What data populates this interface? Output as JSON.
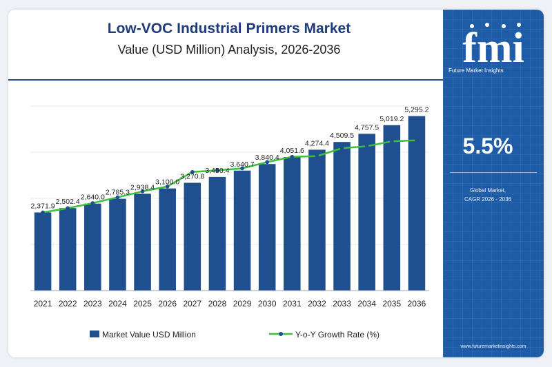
{
  "header": {
    "title": "Low-VOC Industrial Primers Market",
    "subtitle": "Value (USD Million) Analysis, 2026-2036"
  },
  "side_panel": {
    "logo_text": "fmi",
    "logo_tagline": "Future Market Insights",
    "cagr_value": "5.5%",
    "cagr_label_line1": "Global Market,",
    "cagr_label_line2": "CAGR 2026 - 2036",
    "website": "www.futuremarketinsights.com"
  },
  "colors": {
    "bar": "#1f4f8f",
    "line": "#3dbf3d",
    "marker": "#1f4f8f",
    "panel": "#1f5ca8",
    "title": "#1f3b7a",
    "bottom_bar": [
      "#4caf50",
      "#e8731f",
      "#7b3fa0"
    ]
  },
  "chart_data": {
    "type": "bar",
    "title": "Low-VOC Industrial Primers Market",
    "subtitle": "Value (USD Million) Analysis, 2026-2036",
    "categories": [
      "2021",
      "2022",
      "2023",
      "2024",
      "2025",
      "2026",
      "2027",
      "2028",
      "2029",
      "2030",
      "2031",
      "2032",
      "2033",
      "2034",
      "2035",
      "2036"
    ],
    "value_labels": [
      "2,371.9",
      "2,502.4",
      "2,640.0",
      "2,785.3",
      "2,938.4",
      "3,100.0",
      "3,270.8",
      "3,450.4",
      "3,640.7",
      "3,840.4",
      "4,051.6",
      "4,274.4",
      "4,509.5",
      "4,757.5",
      "5,019.2",
      "5,295.2"
    ],
    "series": [
      {
        "name": "Market Value USD Million",
        "type": "bar",
        "values": [
          2371.9,
          2502.4,
          2640.0,
          2785.3,
          2938.4,
          3100.0,
          3270.8,
          3450.4,
          3640.7,
          3840.4,
          4051.6,
          4274.4,
          4509.5,
          4757.5,
          5019.2,
          5295.2
        ]
      },
      {
        "name": "Y-o-Y Growth Rate (%)",
        "type": "line",
        "values": [
          2371.9,
          2500,
          2655,
          2830,
          3010,
          3160,
          3600,
          3650,
          3710,
          3900,
          4060,
          4080,
          4320,
          4380,
          4530,
          4560
        ]
      }
    ],
    "ylim": [
      0,
      5600
    ],
    "grid": true,
    "legend": "bottom"
  }
}
